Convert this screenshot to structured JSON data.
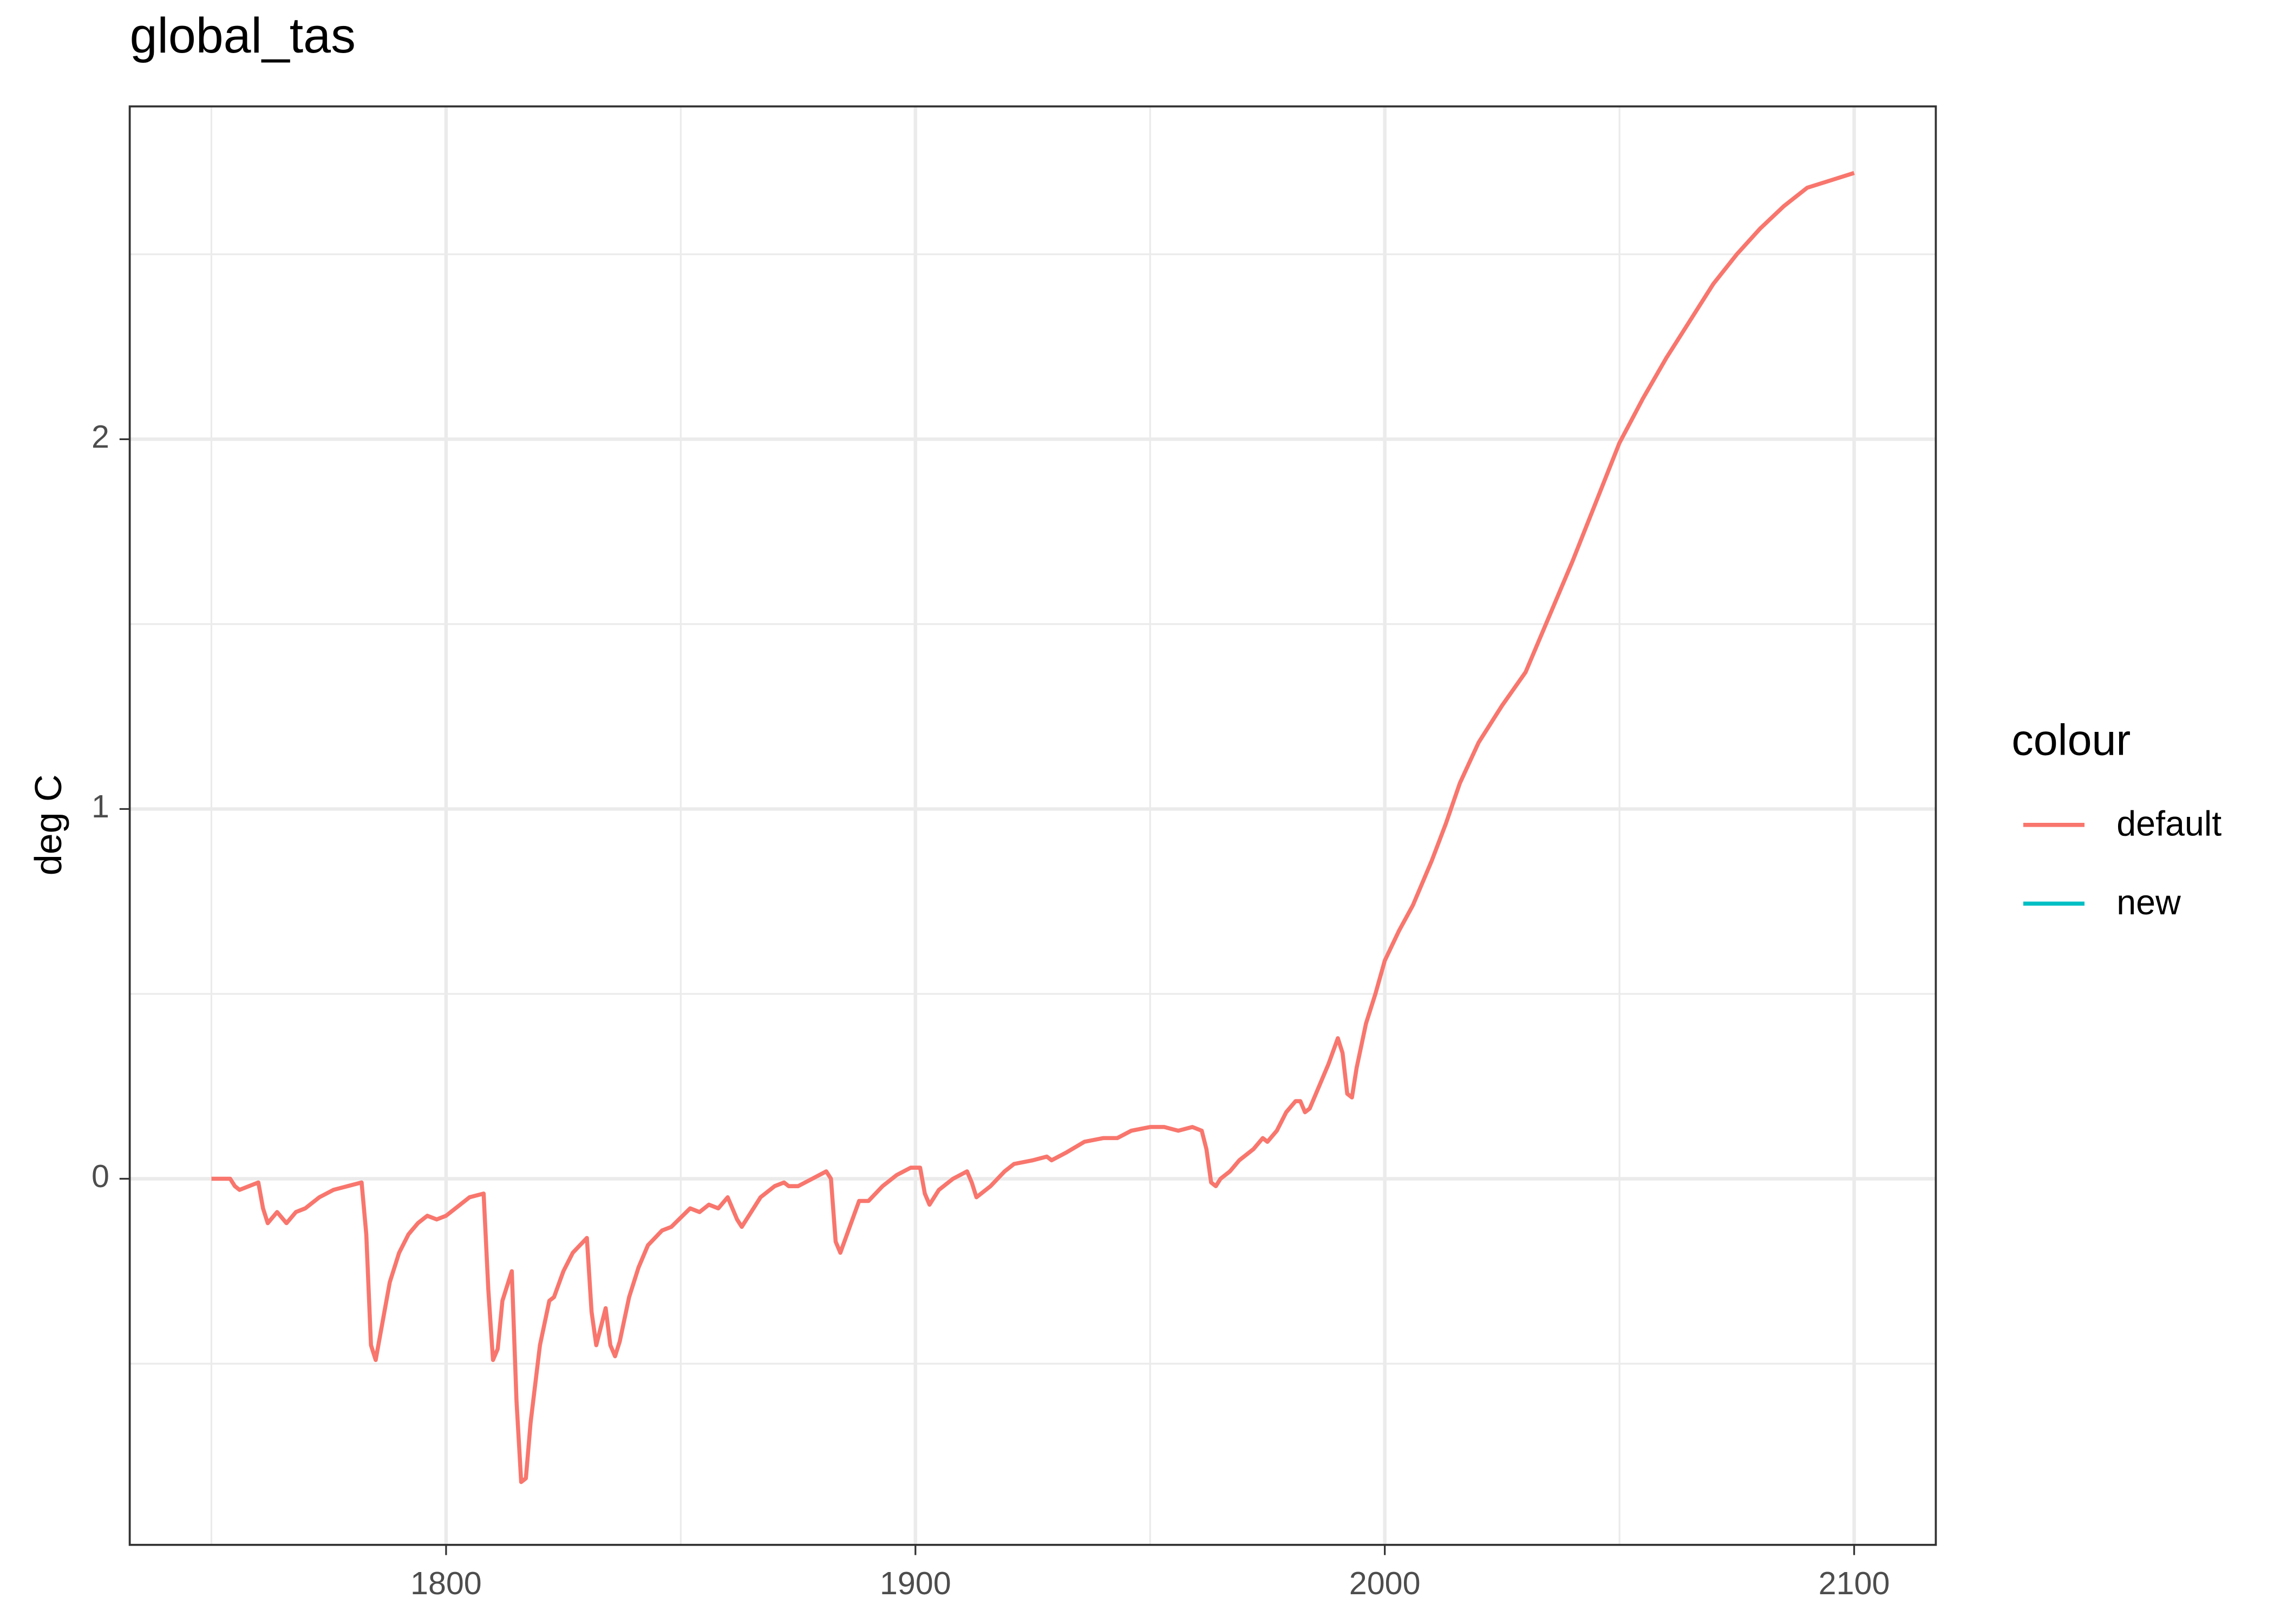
{
  "chart_data": {
    "type": "line",
    "title": "global_tas",
    "y_label": "deg C",
    "legend_title": "colour",
    "legend_position": "right",
    "grid": true,
    "xlim": [
      1732.6,
      2117.4
    ],
    "ylim": [
      -0.99,
      2.9
    ],
    "xticks": [
      1800,
      1900,
      2000,
      2100
    ],
    "yticks": [
      0,
      1,
      2
    ],
    "x": [
      1750,
      1754,
      1755,
      1756,
      1760,
      1761,
      1762,
      1764,
      1766,
      1768,
      1770,
      1773,
      1776,
      1779,
      1782,
      1783,
      1784,
      1785,
      1786,
      1788,
      1790,
      1792,
      1794,
      1796,
      1798,
      1800,
      1802,
      1805,
      1808,
      1809,
      1810,
      1811,
      1812,
      1814,
      1815,
      1816,
      1817,
      1818,
      1820,
      1822,
      1823,
      1825,
      1827,
      1830,
      1831,
      1832,
      1834,
      1835,
      1836,
      1837,
      1839,
      1841,
      1843,
      1846,
      1848,
      1852,
      1854,
      1856,
      1858,
      1860,
      1862,
      1863,
      1865,
      1867,
      1870,
      1872,
      1873,
      1875,
      1878,
      1881,
      1882,
      1883,
      1884,
      1886,
      1888,
      1890,
      1893,
      1896,
      1899,
      1901,
      1902,
      1903,
      1905,
      1908,
      1911,
      1912,
      1913,
      1916,
      1919,
      1921,
      1925,
      1928,
      1929,
      1932,
      1936,
      1940,
      1943,
      1946,
      1950,
      1953,
      1956,
      1959,
      1961,
      1962,
      1963,
      1964,
      1965,
      1967,
      1969,
      1972,
      1974,
      1975,
      1977,
      1979,
      1981,
      1982,
      1983,
      1984,
      1986,
      1988,
      1990,
      1991,
      1992,
      1993,
      1994,
      1996,
      1998,
      2000,
      2003,
      2006,
      2010,
      2013,
      2016,
      2020,
      2025,
      2030,
      2035,
      2040,
      2045,
      2050,
      2055,
      2060,
      2065,
      2070,
      2075,
      2080,
      2085,
      2090,
      2095,
      2100
    ],
    "series": [
      {
        "name": "default",
        "color": "#F8766D",
        "values": [
          0,
          0,
          -0.02,
          -0.03,
          -0.01,
          -0.08,
          -0.12,
          -0.09,
          -0.12,
          -0.09,
          -0.08,
          -0.05,
          -0.03,
          -0.02,
          -0.01,
          -0.15,
          -0.45,
          -0.49,
          -0.42,
          -0.28,
          -0.2,
          -0.15,
          -0.12,
          -0.1,
          -0.11,
          -0.1,
          -0.08,
          -0.05,
          -0.04,
          -0.3,
          -0.49,
          -0.46,
          -0.33,
          -0.25,
          -0.6,
          -0.82,
          -0.81,
          -0.66,
          -0.45,
          -0.33,
          -0.32,
          -0.25,
          -0.2,
          -0.16,
          -0.36,
          -0.45,
          -0.35,
          -0.45,
          -0.48,
          -0.44,
          -0.32,
          -0.24,
          -0.18,
          -0.14,
          -0.13,
          -0.08,
          -0.09,
          -0.07,
          -0.08,
          -0.05,
          -0.11,
          -0.13,
          -0.09,
          -0.05,
          -0.02,
          -0.01,
          -0.02,
          -0.02,
          0,
          0.02,
          0,
          -0.17,
          -0.2,
          -0.13,
          -0.06,
          -0.06,
          -0.02,
          0.01,
          0.03,
          0.03,
          -0.04,
          -0.07,
          -0.03,
          0,
          0.02,
          -0.01,
          -0.05,
          -0.02,
          0.02,
          0.04,
          0.05,
          0.06,
          0.05,
          0.07,
          0.1,
          0.11,
          0.11,
          0.13,
          0.14,
          0.14,
          0.13,
          0.14,
          0.13,
          0.08,
          -0.01,
          -0.02,
          0,
          0.02,
          0.05,
          0.08,
          0.11,
          0.1,
          0.13,
          0.18,
          0.21,
          0.21,
          0.18,
          0.19,
          0.25,
          0.31,
          0.38,
          0.34,
          0.23,
          0.22,
          0.3,
          0.42,
          0.5,
          0.59,
          0.67,
          0.74,
          0.86,
          0.96,
          1.07,
          1.18,
          1.28,
          1.37,
          1.52,
          1.67,
          1.83,
          1.99,
          2.11,
          2.22,
          2.32,
          2.42,
          2.5,
          2.57,
          2.63,
          2.68,
          2.7,
          2.72
        ]
      },
      {
        "name": "new",
        "color": "#00BFC4",
        "values": [
          null,
          null,
          null,
          null,
          null,
          null,
          null,
          null,
          null,
          null,
          null,
          null,
          null,
          null,
          null,
          null,
          null,
          null,
          null,
          null,
          null,
          null,
          null,
          null,
          null,
          null,
          null,
          null,
          null,
          null,
          null,
          null,
          null,
          null,
          null,
          null,
          null,
          null,
          null,
          null,
          null,
          null,
          null,
          null,
          null,
          null,
          null,
          null,
          null,
          null,
          null,
          null,
          null,
          null,
          null,
          null,
          null,
          null,
          null,
          null,
          null,
          null,
          null,
          null,
          null,
          null,
          null,
          null,
          null,
          null,
          null,
          null,
          null,
          null,
          null,
          null,
          null,
          null,
          null,
          null,
          null,
          null,
          null,
          null,
          null,
          null,
          null,
          null,
          null,
          null,
          null,
          null,
          null,
          null,
          null,
          null,
          null,
          null,
          null,
          null,
          null,
          null,
          null,
          null,
          null,
          null,
          null,
          null,
          null,
          null,
          null,
          null,
          null,
          null,
          null,
          null,
          null,
          null,
          null,
          null,
          null,
          null,
          null,
          null,
          null,
          null,
          null,
          null,
          null,
          null,
          null,
          null,
          null,
          null,
          null,
          null,
          null,
          null,
          null,
          null,
          null,
          null,
          null,
          null,
          null,
          null,
          null,
          null,
          null,
          null
        ]
      }
    ]
  }
}
